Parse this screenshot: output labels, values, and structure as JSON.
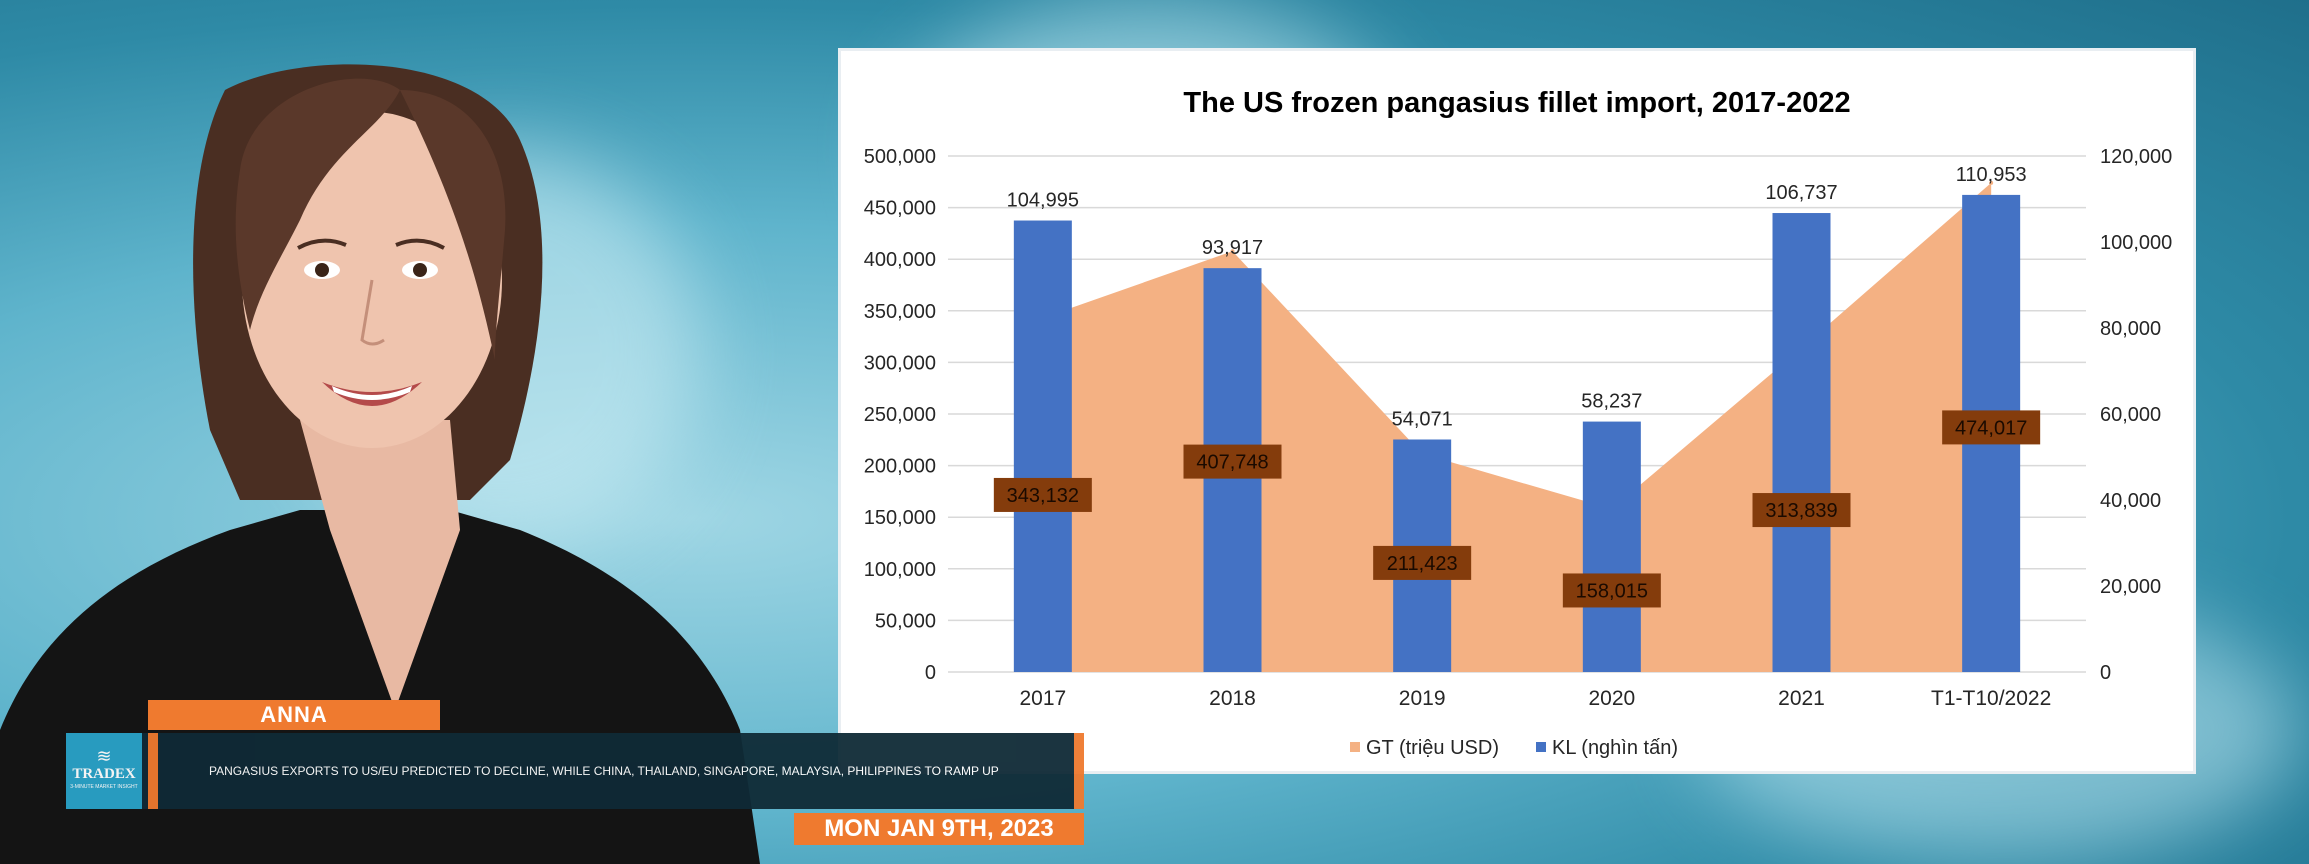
{
  "lower_third": {
    "name": "ANNA",
    "headline": "PANGASIUS EXPORTS TO US/EU PREDICTED TO DECLINE, WHILE CHINA, THAILAND, SINGAPORE, MALAYSIA, PHILIPPINES TO RAMP UP",
    "date": "MON JAN 9TH, 2023",
    "logo": {
      "brand": "TRADEX",
      "tagline": "3-MINUTE MARKET INSIGHT",
      "icon": "wave-icon"
    }
  },
  "colors": {
    "area": "#f4b183",
    "bar": "#4472c4",
    "label_box": "#843c0c",
    "accent": "#ef7a2f",
    "ticker_bg": "#0f2a36",
    "logo_bg": "#2aa3c9"
  },
  "chart_data": {
    "type": "bar",
    "title": "The US frozen pangasius fillet import, 2017-2022",
    "categories": [
      "2017",
      "2018",
      "2019",
      "2020",
      "2021",
      "T1-T10/2022"
    ],
    "series": [
      {
        "name": "GT (triệu USD)",
        "type": "area",
        "axis": "left",
        "values": [
          343132,
          407748,
          211423,
          158015,
          313839,
          474017
        ],
        "labels": [
          "343,132",
          "407,748",
          "211,423",
          "158,015",
          "313,839",
          "474,017"
        ]
      },
      {
        "name": "KL (nghìn tấn)",
        "type": "bar",
        "axis": "right",
        "values": [
          104995,
          93917,
          54071,
          58237,
          106737,
          110953
        ],
        "labels": [
          "104,995",
          "93,917",
          "54,071",
          "58,237",
          "106,737",
          "110,953"
        ]
      }
    ],
    "left_axis": {
      "ylim": [
        0,
        500000
      ],
      "ticks": [
        "0",
        "50,000",
        "100,000",
        "150,000",
        "200,000",
        "250,000",
        "300,000",
        "350,000",
        "400,000",
        "450,000",
        "500,000"
      ]
    },
    "right_axis": {
      "ylim": [
        0,
        120000
      ],
      "ticks": [
        "0",
        "20,000",
        "40,000",
        "60,000",
        "80,000",
        "100,000",
        "120,000"
      ]
    },
    "grid": true,
    "legend_position": "bottom"
  }
}
